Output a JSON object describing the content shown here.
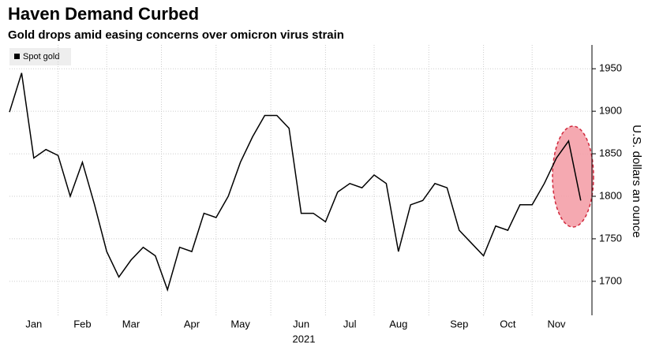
{
  "chart_data": {
    "type": "line",
    "title": "Haven Demand Curbed",
    "subtitle": "Gold drops amid easing concerns over omicron virus strain",
    "ylabel": "U.S. dollars an ounce",
    "xlabel": "2021",
    "categories": [
      null,
      null,
      "Jan",
      null,
      null,
      null,
      "Feb",
      null,
      null,
      null,
      "Mar",
      null,
      null,
      null,
      null,
      "Apr",
      null,
      null,
      null,
      "May",
      null,
      null,
      null,
      null,
      "Jun",
      null,
      null,
      null,
      "Jul",
      null,
      null,
      null,
      "Aug",
      null,
      null,
      null,
      null,
      "Sep",
      null,
      null,
      null,
      "Oct",
      null,
      null,
      null,
      "Nov",
      null,
      null
    ],
    "series": [
      {
        "name": "Spot gold",
        "color": "#000000",
        "values": [
          1899,
          1945,
          1845,
          1855,
          1848,
          1800,
          1840,
          1790,
          1735,
          1705,
          1725,
          1740,
          1730,
          1690,
          1740,
          1735,
          1780,
          1775,
          1800,
          1840,
          1870,
          1895,
          1895,
          1880,
          1780,
          1780,
          1770,
          1805,
          1815,
          1810,
          1825,
          1815,
          1735,
          1790,
          1795,
          1815,
          1810,
          1760,
          1745,
          1730,
          1765,
          1760,
          1790,
          1790,
          1815,
          1845,
          1865,
          1795
        ]
      }
    ],
    "ylim": [
      1660,
      1978
    ],
    "yticks": [
      1700,
      1750,
      1800,
      1850,
      1900,
      1950
    ],
    "grid": true,
    "legend": "top-left"
  }
}
